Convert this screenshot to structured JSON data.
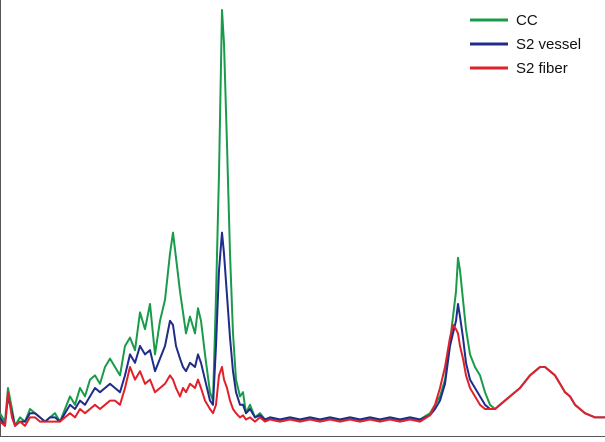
{
  "chart_data": {
    "type": "line",
    "title": "",
    "xlabel": "",
    "ylabel": "",
    "xlim": [
      0,
      605
    ],
    "ylim": [
      0,
      1
    ],
    "grid": false,
    "legend_position": "top-right",
    "x": [
      0,
      5,
      8,
      12,
      15,
      20,
      25,
      30,
      35,
      40,
      45,
      50,
      55,
      60,
      65,
      70,
      75,
      80,
      85,
      90,
      95,
      100,
      105,
      110,
      115,
      120,
      125,
      130,
      135,
      140,
      145,
      150,
      155,
      160,
      165,
      170,
      173,
      176,
      180,
      183,
      186,
      190,
      195,
      198,
      201,
      205,
      210,
      213,
      216,
      219,
      222,
      224,
      227,
      230,
      233,
      236,
      240,
      243,
      246,
      250,
      255,
      260,
      265,
      270,
      280,
      290,
      300,
      310,
      320,
      330,
      340,
      350,
      360,
      370,
      380,
      390,
      400,
      410,
      420,
      430,
      435,
      440,
      445,
      450,
      453,
      456,
      458,
      460,
      463,
      466,
      470,
      475,
      480,
      485,
      490,
      495,
      500,
      510,
      520,
      530,
      535,
      540,
      545,
      550,
      555,
      560,
      565,
      570,
      575,
      580,
      585,
      590,
      595,
      600,
      605
    ],
    "series": [
      {
        "name": "CC",
        "color": "#1a9b4a",
        "values": [
          0.04,
          0.02,
          0.1,
          0.05,
          0.01,
          0.03,
          0.02,
          0.05,
          0.04,
          0.03,
          0.02,
          0.03,
          0.04,
          0.02,
          0.05,
          0.08,
          0.06,
          0.1,
          0.08,
          0.12,
          0.13,
          0.11,
          0.15,
          0.17,
          0.15,
          0.13,
          0.2,
          0.22,
          0.19,
          0.28,
          0.24,
          0.3,
          0.18,
          0.26,
          0.31,
          0.42,
          0.47,
          0.41,
          0.33,
          0.28,
          0.23,
          0.27,
          0.23,
          0.29,
          0.26,
          0.18,
          0.09,
          0.07,
          0.32,
          0.61,
          1.0,
          0.92,
          0.68,
          0.42,
          0.23,
          0.12,
          0.08,
          0.09,
          0.04,
          0.06,
          0.03,
          0.04,
          0.025,
          0.03,
          0.025,
          0.03,
          0.025,
          0.03,
          0.025,
          0.03,
          0.025,
          0.03,
          0.025,
          0.03,
          0.025,
          0.03,
          0.025,
          0.03,
          0.025,
          0.04,
          0.06,
          0.08,
          0.12,
          0.21,
          0.27,
          0.33,
          0.41,
          0.38,
          0.31,
          0.24,
          0.18,
          0.15,
          0.13,
          0.09,
          0.06,
          0.05,
          0.06,
          0.08,
          0.1,
          0.13,
          0.14,
          0.15,
          0.15,
          0.14,
          0.13,
          0.11,
          0.09,
          0.08,
          0.06,
          0.05,
          0.04,
          0.035,
          0.03,
          0.03,
          0.03
        ]
      },
      {
        "name": "S2 vessel",
        "color": "#1f2c8a",
        "values": [
          0.03,
          0.01,
          0.08,
          0.04,
          0.01,
          0.02,
          0.02,
          0.04,
          0.04,
          0.03,
          0.02,
          0.03,
          0.03,
          0.02,
          0.04,
          0.06,
          0.05,
          0.07,
          0.06,
          0.08,
          0.1,
          0.09,
          0.1,
          0.11,
          0.1,
          0.09,
          0.13,
          0.18,
          0.16,
          0.2,
          0.18,
          0.19,
          0.14,
          0.17,
          0.2,
          0.26,
          0.25,
          0.2,
          0.17,
          0.15,
          0.14,
          0.16,
          0.15,
          0.18,
          0.16,
          0.12,
          0.07,
          0.06,
          0.2,
          0.38,
          0.47,
          0.42,
          0.32,
          0.22,
          0.14,
          0.09,
          0.06,
          0.06,
          0.04,
          0.05,
          0.03,
          0.035,
          0.025,
          0.03,
          0.025,
          0.03,
          0.025,
          0.03,
          0.025,
          0.03,
          0.025,
          0.03,
          0.025,
          0.03,
          0.025,
          0.03,
          0.025,
          0.03,
          0.025,
          0.035,
          0.05,
          0.07,
          0.11,
          0.2,
          0.23,
          0.26,
          0.3,
          0.27,
          0.22,
          0.16,
          0.12,
          0.1,
          0.08,
          0.06,
          0.05,
          0.05,
          0.06,
          0.08,
          0.1,
          0.13,
          0.14,
          0.15,
          0.15,
          0.14,
          0.13,
          0.11,
          0.09,
          0.08,
          0.06,
          0.05,
          0.04,
          0.035,
          0.03,
          0.03,
          0.03
        ]
      },
      {
        "name": "S2 fiber",
        "color": "#e0202a",
        "values": [
          0.02,
          0.01,
          0.09,
          0.03,
          0.01,
          0.02,
          0.01,
          0.03,
          0.03,
          0.02,
          0.02,
          0.02,
          0.02,
          0.02,
          0.03,
          0.04,
          0.03,
          0.05,
          0.04,
          0.05,
          0.06,
          0.05,
          0.06,
          0.07,
          0.07,
          0.06,
          0.1,
          0.15,
          0.12,
          0.14,
          0.11,
          0.12,
          0.09,
          0.1,
          0.11,
          0.13,
          0.12,
          0.1,
          0.08,
          0.1,
          0.09,
          0.11,
          0.1,
          0.12,
          0.1,
          0.07,
          0.05,
          0.04,
          0.06,
          0.13,
          0.15,
          0.12,
          0.1,
          0.07,
          0.05,
          0.04,
          0.03,
          0.035,
          0.025,
          0.03,
          0.02,
          0.03,
          0.02,
          0.025,
          0.02,
          0.025,
          0.02,
          0.025,
          0.02,
          0.025,
          0.02,
          0.025,
          0.02,
          0.025,
          0.02,
          0.025,
          0.02,
          0.025,
          0.02,
          0.035,
          0.06,
          0.1,
          0.15,
          0.22,
          0.25,
          0.24,
          0.23,
          0.2,
          0.17,
          0.13,
          0.1,
          0.08,
          0.06,
          0.05,
          0.05,
          0.05,
          0.06,
          0.08,
          0.1,
          0.13,
          0.14,
          0.15,
          0.15,
          0.14,
          0.13,
          0.11,
          0.09,
          0.08,
          0.06,
          0.05,
          0.04,
          0.035,
          0.03,
          0.03,
          0.03
        ]
      }
    ]
  }
}
